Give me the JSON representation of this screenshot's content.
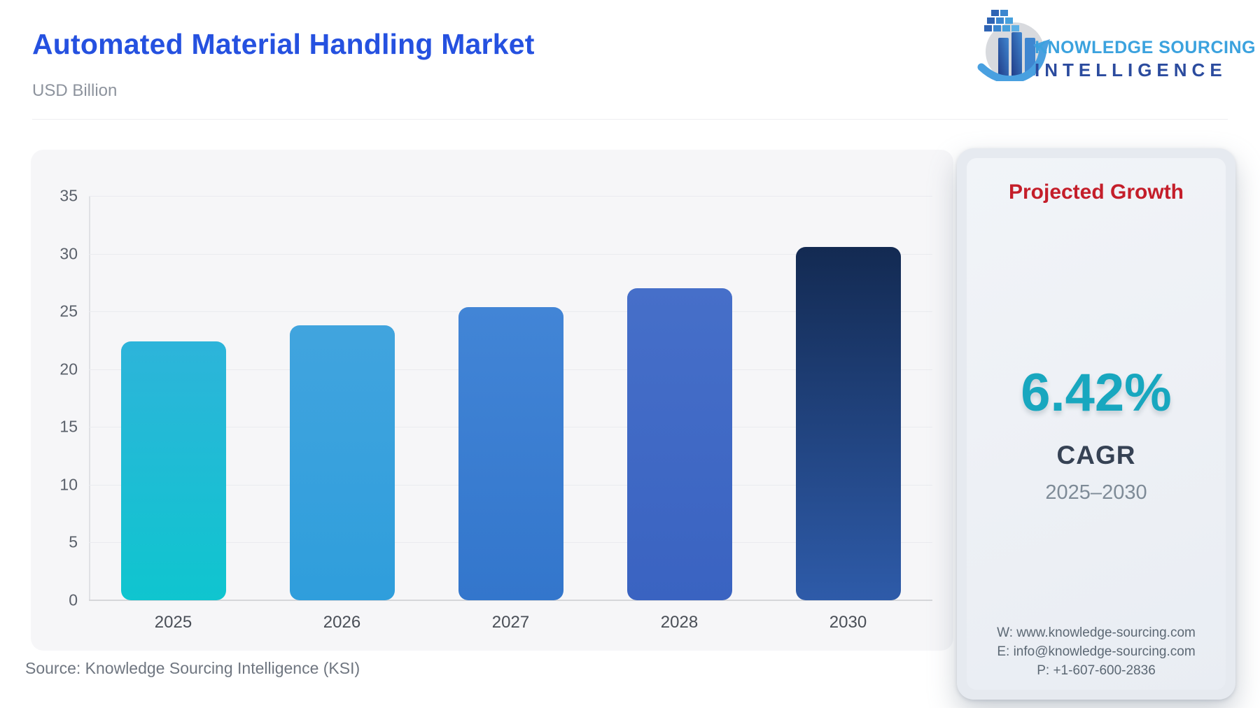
{
  "header": {
    "title": "Automated Material Handling Market",
    "subtitle": "USD Billion",
    "logo": {
      "line1": "KNOWLEDGE SOURCING",
      "line2": "INTELLIGENCE"
    }
  },
  "chart_data": {
    "type": "bar",
    "title": "Automated Material Handling Market",
    "ylabel": "USD Billion",
    "xlabel": "",
    "categories": [
      "2025",
      "2026",
      "2027",
      "2028",
      "2030"
    ],
    "values": [
      22.4,
      23.8,
      25.4,
      27.0,
      30.6
    ],
    "ylim": [
      0,
      35
    ],
    "yticks": [
      0,
      5,
      10,
      15,
      20,
      25,
      30,
      35
    ],
    "grid": true,
    "legend": "none",
    "bar_colors": [
      [
        "#2db4da",
        "#0fc5cf"
      ],
      [
        "#41a4de",
        "#2f9edc"
      ],
      [
        "#4285d6",
        "#3376cc"
      ],
      [
        "#466fc9",
        "#3a63c1"
      ],
      [
        "#132a52",
        "#2e5ba9"
      ]
    ]
  },
  "side_panel": {
    "heading": "Projected Growth",
    "heading_color": "#c41e2a",
    "cagr_value": "6.42%",
    "cagr_value_color": "#18a7bf",
    "cagr_label": "CAGR",
    "period": "2025–2030",
    "contact": {
      "website": "W: www.knowledge-sourcing.com",
      "email": "E: info@knowledge-sourcing.com",
      "phone": "P: +1-607-600-2836"
    }
  },
  "footer": {
    "source": "Source: Knowledge Sourcing Intelligence (KSI)"
  },
  "colors": {
    "title_blue": "#2551e0",
    "panel_bg": "#f6f6f8",
    "logo_light_blue": "#3ba2de",
    "logo_dark_blue": "#2b4b9e"
  }
}
